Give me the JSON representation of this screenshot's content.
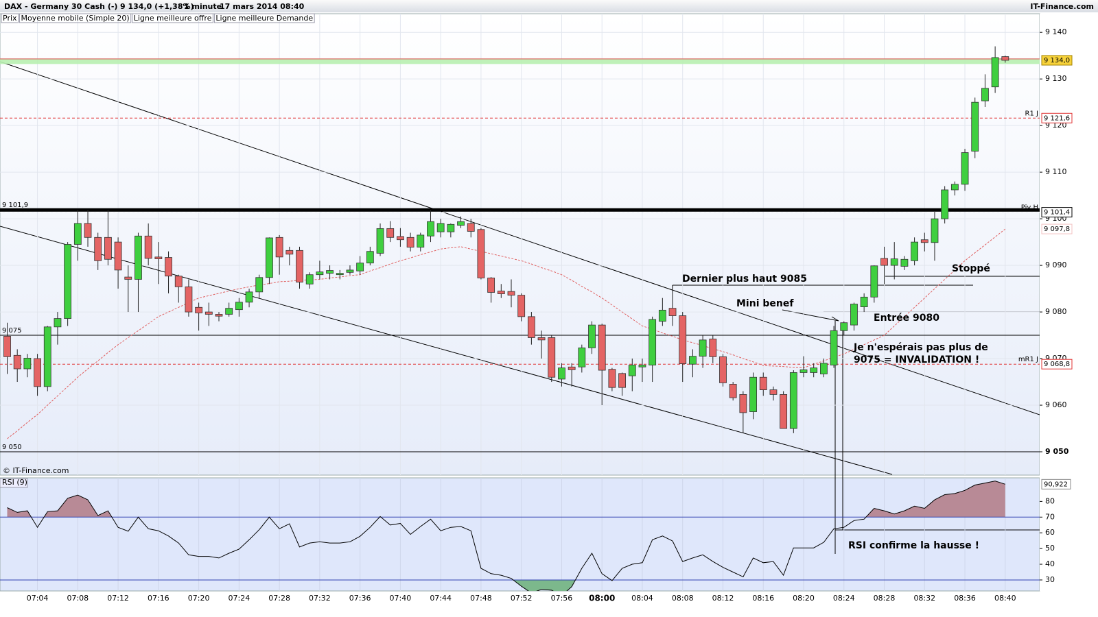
{
  "chart_data": {
    "type": "candlestick",
    "title": "DAX - Germany 30 Cash (-)",
    "header_price": "9 134,0 (+1,38%)",
    "timeframe": "1 minute",
    "date": "17 mars 2014 08:40",
    "source": "IT-Finance.com",
    "watermark": "© IT-Finance.com",
    "legend": [
      "Prix",
      "Moyenne mobile (Simple 20)",
      "Ligne meilleure offre",
      "Ligne meilleure Demande"
    ],
    "legend_colors": [
      "#000000",
      "#e06060",
      "#40c040",
      "#e06060"
    ],
    "categories": [
      null,
      null,
      null,
      "07:04",
      null,
      null,
      null,
      "07:08",
      null,
      null,
      null,
      "07:12",
      null,
      null,
      null,
      "07:16",
      null,
      null,
      null,
      "07:20",
      null,
      null,
      null,
      "07:24",
      null,
      null,
      null,
      "07:28",
      null,
      null,
      null,
      "07:32",
      null,
      null,
      null,
      "07:36",
      null,
      null,
      null,
      "07:40",
      null,
      null,
      null,
      "07:44",
      null,
      null,
      null,
      "07:48",
      null,
      null,
      null,
      "07:52",
      null,
      null,
      null,
      "07:56",
      null,
      null,
      null,
      "08:00",
      null,
      null,
      null,
      "08:04",
      null,
      null,
      null,
      "08:08",
      null,
      null,
      null,
      "08:12",
      null,
      null,
      null,
      "08:16",
      null,
      null,
      null,
      "08:20",
      null,
      null,
      null,
      "08:24",
      null,
      null,
      null,
      "08:28",
      null,
      null,
      null,
      "08:32",
      null,
      null,
      null,
      "08:36",
      null,
      null,
      null,
      "08:40"
    ],
    "bold_category": "08:00",
    "open": [
      9074.8,
      9070.7,
      9067.8,
      9070,
      9064,
      9076.8,
      9078.6,
      9094.5,
      9099,
      9096,
      9096,
      9095,
      9087.5,
      9087,
      9096.3,
      9091.8,
      9091.7,
      9087.7,
      9085.4,
      9081,
      9080,
      9079.5,
      9079.5,
      9080.5,
      9082.1,
      9084.3,
      9087.4,
      9096,
      9093.2,
      9093.2,
      9086,
      9088,
      9088.3,
      9088,
      9088.5,
      9088.8,
      9090.5,
      9092.6,
      9097.9,
      9096.2,
      9096,
      9093.9,
      9096.3,
      9097.2,
      9097.2,
      9098.6,
      9099,
      9097.7,
      9087.3,
      9084.5,
      9084.4,
      9083.6,
      9079,
      9074.5,
      9074.5,
      9065.6,
      9068.2,
      9068.2,
      9072.3,
      9077.2,
      9067.7,
      9066.8,
      9066.3,
      9068.2,
      9068.6,
      9078,
      9080.8,
      9079.2,
      9068.8,
      9070.5,
      9074.2,
      9070.4,
      9064.5,
      9062.3,
      9058.6,
      9066,
      9063.3,
      9062.3,
      9055,
      9067,
      9067,
      9066.7,
      9068.6,
      9076,
      9077.2,
      9081.1,
      9083.2,
      9091.5,
      9090,
      9089.8,
      9091,
      9095.5,
      9094.9,
      9100,
      9106.2,
      9107.4,
      9114.5,
      9125.3,
      9128.3,
      9134.8
    ],
    "high": [
      9077.7,
      9072,
      9071,
      9071,
      9077,
      9080,
      9095,
      9101.9,
      9101.9,
      9097,
      9101.9,
      9096,
      9090,
      9097,
      9099,
      9095,
      9093,
      9088,
      9087,
      9082,
      9082,
      9080,
      9082,
      9083,
      9085,
      9088,
      9096,
      9096.5,
      9094,
      9094,
      9088.5,
      9091,
      9090,
      9089,
      9090,
      9092,
      9094,
      9099,
      9099.5,
      9098,
      9097,
      9097,
      9101.9,
      9100,
      9099,
      9100.5,
      9100,
      9098,
      9087.5,
      9086,
      9087,
      9084,
      9080,
      9076,
      9075,
      9069,
      9069,
      9073,
      9078,
      9077.5,
      9068,
      9067,
      9070,
      9070,
      9079,
      9083,
      9085,
      9080,
      9072,
      9075,
      9075,
      9071,
      9065,
      9063,
      9067,
      9067,
      9064,
      9063,
      9067.5,
      9070.5,
      9069,
      9070,
      9077,
      9078,
      9082,
      9084,
      9090,
      9094,
      9095,
      9092,
      9096,
      9097,
      9101.5,
      9107,
      9108,
      9115,
      9126,
      9131,
      9137,
      9135
    ],
    "low": [
      9066.7,
      9065,
      9066,
      9062,
      9063,
      9073,
      9077,
      9091,
      9094,
      9089,
      9090,
      9085,
      9080,
      9080,
      9090,
      9086,
      9084,
      9082,
      9079,
      9076,
      9077,
      9078,
      9079,
      9079,
      9081,
      9083,
      9086,
      9088,
      9090,
      9085,
      9085,
      9087,
      9087,
      9087,
      9088,
      9088,
      9090,
      9092,
      9095,
      9094,
      9093,
      9093,
      9095,
      9096,
      9096,
      9098,
      9096,
      9087,
      9082,
      9083,
      9081,
      9078,
      9073,
      9070,
      9065,
      9064,
      9064,
      9067,
      9071,
      9060,
      9063,
      9062,
      9063,
      9065,
      9065,
      9077,
      9077,
      9065,
      9066,
      9068,
      9069,
      9064,
      9061,
      9054,
      9057,
      9062,
      9061,
      9055,
      9054,
      9066,
      9066,
      9066,
      9068,
      9075,
      9076,
      9080,
      9082,
      9086,
      9087,
      9089,
      9090,
      9093,
      9091,
      9099,
      9105,
      9106,
      9113,
      9124,
      9127,
      9133.5
    ],
    "close": [
      9070.4,
      9067.8,
      9070.1,
      9064,
      9076.8,
      9078.6,
      9094.5,
      9099,
      9096,
      9091,
      9091.3,
      9089,
      9087,
      9096.3,
      9091.5,
      9091.4,
      9087.7,
      9085.4,
      9080,
      9079.8,
      9079.5,
      9079.1,
      9080.8,
      9082.1,
      9084.3,
      9087.4,
      9095.9,
      9091.8,
      9092.4,
      9086.4,
      9088,
      9088.6,
      9088.9,
      9088.3,
      9089,
      9090.5,
      9093,
      9097.9,
      9096,
      9095.5,
      9093.9,
      9096.5,
      9099.4,
      9099,
      9098.8,
      9099.4,
      9097.3,
      9087.3,
      9084.2,
      9083.9,
      9083.6,
      9079,
      9074.5,
      9074,
      9066,
      9068,
      9067.6,
      9072.3,
      9077.2,
      9067.5,
      9063.8,
      9063.8,
      9068.6,
      9068.6,
      9078.4,
      9080.4,
      9079.2,
      9068.9,
      9070.5,
      9074,
      9070.4,
      9064.8,
      9061.6,
      9058.4,
      9066,
      9063.3,
      9062.3,
      9055,
      9067,
      9067.6,
      9068,
      9069,
      9076,
      9077.7,
      9081.7,
      9083.2,
      9089.9,
      9090,
      9091.4,
      9091.3,
      9095,
      9094.9,
      9100,
      9106.2,
      9107.4,
      9114.2,
      9125,
      9128,
      9134.6,
      9134.0
    ],
    "up_color": "#3fcf3f",
    "down_color": "#e46464",
    "ylim": [
      9045,
      9144
    ],
    "yticks": [
      {
        "value": 9140,
        "label": "9 140"
      },
      {
        "value": 9130,
        "label": "9 130"
      },
      {
        "value": 9120,
        "label": "9 120"
      },
      {
        "value": 9110,
        "label": "9 110"
      },
      {
        "value": 9100,
        "label": "9 100"
      },
      {
        "value": 9090,
        "label": "9 090"
      },
      {
        "value": 9080,
        "label": "9 080"
      },
      {
        "value": 9070,
        "label": "9 070"
      },
      {
        "value": 9060,
        "label": "9 060"
      },
      {
        "value": 9050,
        "label": "9 050"
      }
    ],
    "grid": true,
    "ma": {
      "name": "Moyenne mobile (Simple 20)",
      "color": "#e06060",
      "values": [
        9052.8,
        9054.5,
        9056.3,
        9058,
        9060,
        9062,
        9064,
        9066,
        9067.8,
        9069.5,
        9071.3,
        9073,
        9074.5,
        9076,
        9077.5,
        9079,
        9080,
        9081,
        9082,
        9083,
        9083.5,
        9084,
        9084.5,
        9085,
        9085.4,
        9085.8,
        9086.1,
        9086.5,
        9086.6,
        9086.8,
        9086.9,
        9087,
        9087.3,
        9087.5,
        9087.8,
        9088,
        9088.8,
        9089.5,
        9090.3,
        9091,
        9091.6,
        9092.3,
        9092.9,
        9093.5,
        9093.8,
        9094,
        9093.5,
        9093,
        9092.5,
        9092,
        9091.5,
        9091,
        9090.3,
        9089.5,
        9088.8,
        9088,
        9086.8,
        9085.5,
        9084.3,
        9083,
        9081.5,
        9080,
        9078.5,
        9077,
        9076.3,
        9075.5,
        9074.8,
        9074,
        9073.4,
        9072.8,
        9072.1,
        9071.5,
        9070.8,
        9070,
        9069.3,
        9068.5,
        9068.4,
        9068.3,
        9068.1,
        9068,
        9068.8,
        9069.5,
        9070.3,
        9071,
        9072,
        9073,
        9074,
        9075,
        9077,
        9079,
        9081,
        9083,
        9085,
        9087,
        9089,
        9091,
        9092.7,
        9094.4,
        9096.1,
        9097.8
      ],
      "last": {
        "value": 9097.8,
        "label": "9 097,8"
      }
    },
    "current": {
      "value": 9134.0,
      "label": "9 134,0"
    },
    "offer": {
      "value": 9133.8,
      "color": "#b8f0b0"
    },
    "demand": {
      "value": 9134.3,
      "color": "#e06060"
    },
    "lines": [
      {
        "value": 9101.9,
        "label": "9 101,9",
        "width": 5
      },
      {
        "value": 9075,
        "label": "9 075",
        "width": 1
      },
      {
        "value": 9050,
        "label": "9 050",
        "width": 1
      }
    ],
    "pivots": [
      {
        "name": "R1 J",
        "value": 9121.6,
        "label": "9 121,6",
        "color": "#e03030"
      },
      {
        "name": "Piv H",
        "value": 9101.4,
        "label": "9 101,4",
        "color": "#000000"
      },
      {
        "name": "mR1 J",
        "value": 9068.8,
        "label": "9 068,8",
        "color": "#e03030"
      }
    ],
    "annotations": [
      "Dernier plus haut 9085",
      "Mini benef",
      "Entrée 9080",
      "Stoppé",
      "Je n'espérais pas plus de",
      "9075 = INVALIDATION !",
      "RSI confirme la hausse !"
    ],
    "rsi": {
      "type": "line",
      "title": "RSI (9)",
      "color": "#000000",
      "values": [
        76,
        73,
        74,
        63.5,
        73.5,
        74,
        82,
        84,
        81,
        71,
        74,
        63.5,
        61,
        70,
        62.6,
        61.3,
        58,
        53.5,
        46,
        45,
        45,
        44,
        47,
        49.6,
        55.6,
        62,
        70,
        62.6,
        65.7,
        51,
        53.5,
        54.3,
        53.5,
        53.5,
        54.3,
        57.8,
        63.5,
        70.4,
        65,
        66,
        59,
        64,
        68.7,
        61.3,
        63.5,
        64,
        61.3,
        37.4,
        34,
        33,
        31,
        26,
        21.7,
        24,
        23.5,
        20,
        25.7,
        37.4,
        47,
        34,
        29.6,
        37.4,
        40,
        41,
        55.6,
        58,
        54.8,
        41.7,
        44,
        46,
        41.7,
        38,
        35,
        32,
        44,
        41,
        41.7,
        33,
        50.4,
        50.4,
        50.4,
        54,
        62.6,
        63.5,
        67.8,
        68.7,
        75.6,
        74,
        72,
        74,
        77,
        75.6,
        81,
        84.3,
        85,
        87,
        90.4,
        91.7,
        93,
        90.922
      ],
      "current": {
        "value": 90.922,
        "label": "90,922"
      },
      "ylim": [
        23,
        95
      ],
      "yticks": [
        30,
        40,
        50,
        60,
        70,
        80
      ],
      "levels": [
        70,
        30
      ],
      "level_color": "#3040b0",
      "overbought_fill": "#b88a96",
      "oversold_fill": "#7cb88c"
    }
  }
}
